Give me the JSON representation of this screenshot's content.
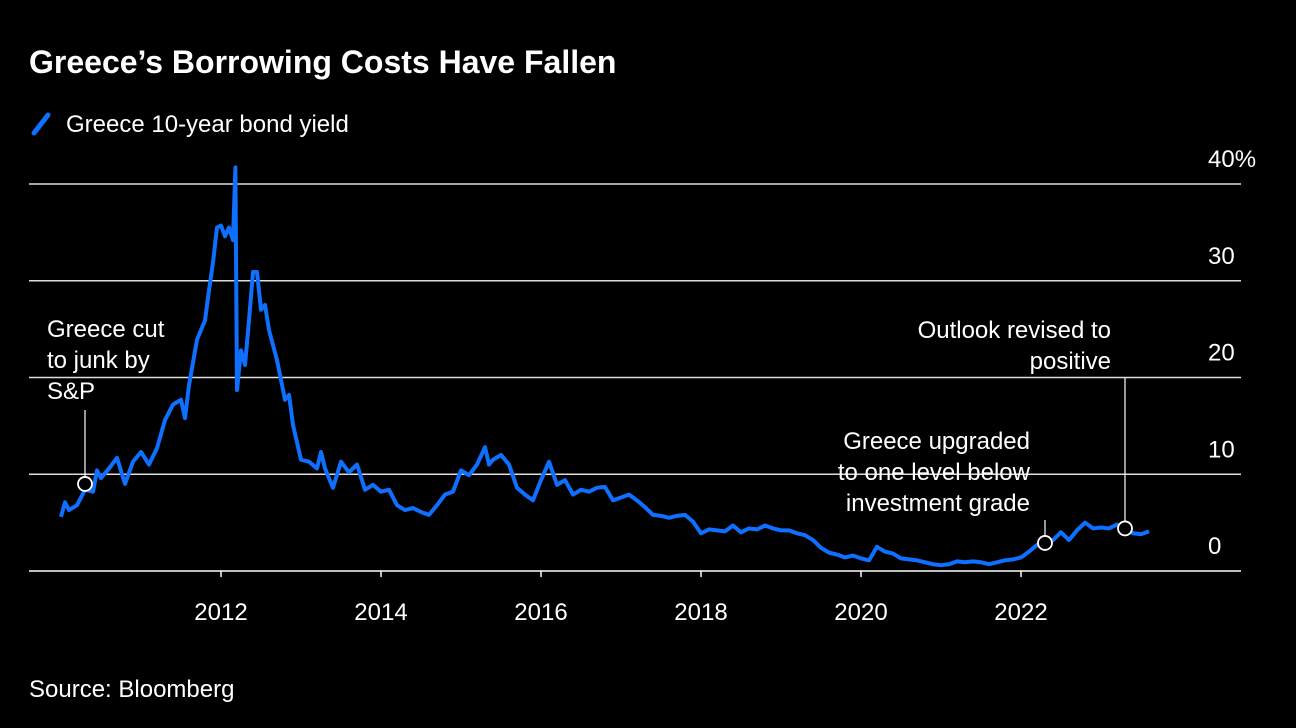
{
  "chart_data": {
    "type": "line",
    "title": "Greece’s Borrowing Costs Have Fallen",
    "source": "Source: Bloomberg",
    "x": [
      2010.0,
      2010.05,
      2010.1,
      2010.2,
      2010.3,
      2010.4,
      2010.45,
      2010.5,
      2010.6,
      2010.7,
      2010.8,
      2010.9,
      2011.0,
      2011.1,
      2011.2,
      2011.3,
      2011.4,
      2011.5,
      2011.55,
      2011.6,
      2011.7,
      2011.8,
      2011.85,
      2011.9,
      2011.95,
      2012.0,
      2012.05,
      2012.1,
      2012.15,
      2012.18,
      2012.2,
      2012.25,
      2012.3,
      2012.35,
      2012.4,
      2012.45,
      2012.5,
      2012.55,
      2012.6,
      2012.7,
      2012.8,
      2012.85,
      2012.9,
      2013.0,
      2013.1,
      2013.2,
      2013.25,
      2013.3,
      2013.4,
      2013.5,
      2013.6,
      2013.7,
      2013.8,
      2013.9,
      2014.0,
      2014.1,
      2014.2,
      2014.3,
      2014.4,
      2014.5,
      2014.6,
      2014.7,
      2014.8,
      2014.9,
      2015.0,
      2015.1,
      2015.2,
      2015.3,
      2015.35,
      2015.4,
      2015.5,
      2015.6,
      2015.7,
      2015.8,
      2015.9,
      2016.0,
      2016.1,
      2016.2,
      2016.3,
      2016.4,
      2016.5,
      2016.6,
      2016.7,
      2016.8,
      2016.9,
      2017.0,
      2017.1,
      2017.2,
      2017.3,
      2017.4,
      2017.5,
      2017.6,
      2017.7,
      2017.8,
      2017.9,
      2018.0,
      2018.1,
      2018.2,
      2018.3,
      2018.4,
      2018.5,
      2018.6,
      2018.7,
      2018.8,
      2018.9,
      2019.0,
      2019.1,
      2019.2,
      2019.3,
      2019.4,
      2019.5,
      2019.6,
      2019.7,
      2019.8,
      2019.9,
      2020.0,
      2020.1,
      2020.2,
      2020.3,
      2020.4,
      2020.5,
      2020.6,
      2020.7,
      2020.8,
      2020.9,
      2021.0,
      2021.1,
      2021.2,
      2021.3,
      2021.4,
      2021.5,
      2021.6,
      2021.7,
      2021.8,
      2021.9,
      2022.0,
      2022.1,
      2022.2,
      2022.3,
      2022.4,
      2022.5,
      2022.6,
      2022.7,
      2022.8,
      2022.9,
      2023.0,
      2023.1,
      2023.2,
      2023.3,
      2023.4,
      2023.5,
      2023.6
    ],
    "series": [
      {
        "name": "Greece 10-year bond yield",
        "color": "#0f6fff",
        "values": [
          5.6,
          7.1,
          6.3,
          6.8,
          8.4,
          8.2,
          10.4,
          9.6,
          10.6,
          11.7,
          9.0,
          11.3,
          12.3,
          11.0,
          12.7,
          15.6,
          17.2,
          17.7,
          15.8,
          19.2,
          23.9,
          25.9,
          29.0,
          31.9,
          35.5,
          35.7,
          34.6,
          35.5,
          34.2,
          41.7,
          18.7,
          22.8,
          21.3,
          25.9,
          30.9,
          30.9,
          27.0,
          27.5,
          24.9,
          21.8,
          17.7,
          18.2,
          15.1,
          11.5,
          11.3,
          10.6,
          12.3,
          10.6,
          8.6,
          11.3,
          10.2,
          11.0,
          8.4,
          8.9,
          8.2,
          8.4,
          6.8,
          6.3,
          6.5,
          6.1,
          5.8,
          6.8,
          7.9,
          8.2,
          10.4,
          9.9,
          11.0,
          12.8,
          11.0,
          11.5,
          12.0,
          11.0,
          8.6,
          7.9,
          7.3,
          9.4,
          11.3,
          8.9,
          9.4,
          7.9,
          8.4,
          8.2,
          8.6,
          8.7,
          7.3,
          7.6,
          7.9,
          7.3,
          6.6,
          5.8,
          5.7,
          5.5,
          5.7,
          5.8,
          5.1,
          3.9,
          4.3,
          4.2,
          4.1,
          4.7,
          4.0,
          4.4,
          4.3,
          4.7,
          4.4,
          4.2,
          4.2,
          3.9,
          3.7,
          3.2,
          2.4,
          1.9,
          1.7,
          1.4,
          1.6,
          1.3,
          1.1,
          2.5,
          2.0,
          1.8,
          1.3,
          1.2,
          1.1,
          0.9,
          0.7,
          0.6,
          0.7,
          1.0,
          0.9,
          1.0,
          0.9,
          0.7,
          0.9,
          1.1,
          1.2,
          1.4,
          2.0,
          2.7,
          2.9,
          3.2,
          4.0,
          3.2,
          4.2,
          5.0,
          4.4,
          4.5,
          4.4,
          4.8,
          4.4,
          3.9,
          3.8,
          4.1
        ]
      }
    ],
    "xlim": [
      2009.6,
      2024.75
    ],
    "xticks": [
      2012,
      2014,
      2016,
      2018,
      2020,
      2022
    ],
    "ylim": [
      0,
      40
    ],
    "yticks": [
      0,
      10,
      20,
      30,
      {
        "value": 40,
        "label": "40%"
      }
    ],
    "grid": true,
    "annotations": [
      {
        "text": [
          "Greece cut",
          "to junk by",
          "S&P"
        ],
        "x": 2010.3,
        "y": 9.0
      },
      {
        "text": [
          "Greece upgraded",
          "to one level below",
          "investment grade"
        ],
        "x": 2022.3,
        "y": 2.9
      },
      {
        "text": [
          "Outlook revised to",
          "positive"
        ],
        "x": 2023.3,
        "y": 4.4
      }
    ]
  }
}
